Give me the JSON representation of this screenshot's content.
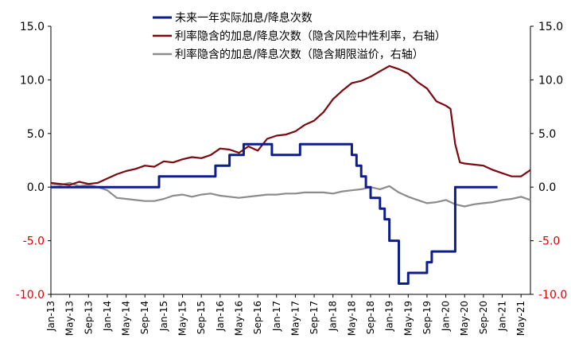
{
  "chart_data": {
    "type": "line",
    "y_left": {
      "min": -10,
      "max": 15,
      "ticks": [
        "15.0",
        "10.0",
        "5.0",
        "0.0",
        "-5.0",
        "-10.0"
      ],
      "tick_values": [
        15,
        10,
        5,
        0,
        -5,
        -10
      ]
    },
    "y_right": {
      "min": -10,
      "max": 15,
      "ticks": [
        "15.0",
        "10.0",
        "5.0",
        "0.0",
        "-5.0",
        "-10.0"
      ],
      "tick_values": [
        15,
        10,
        5,
        0,
        -5,
        -10
      ]
    },
    "x_range": [
      "2013-01",
      "2021-07"
    ],
    "x_ticks": [
      "Jan-13",
      "May-13",
      "Sep-13",
      "Jan-14",
      "May-14",
      "Sep-14",
      "Jan-15",
      "May-15",
      "Sep-15",
      "Jan-16",
      "May-16",
      "Sep-16",
      "Jan-17",
      "May-17",
      "Sep-17",
      "Jan-18",
      "May-18",
      "Sep-18",
      "Jan-19",
      "May-19",
      "Sep-19",
      "Jan-20",
      "May-20",
      "Sep-20",
      "Jan-21",
      "May-21"
    ],
    "x_tick_dates": [
      "2013-01",
      "2013-05",
      "2013-09",
      "2014-01",
      "2014-05",
      "2014-09",
      "2015-01",
      "2015-05",
      "2015-09",
      "2016-01",
      "2016-05",
      "2016-09",
      "2017-01",
      "2017-05",
      "2017-09",
      "2018-01",
      "2018-05",
      "2018-09",
      "2019-01",
      "2019-05",
      "2019-09",
      "2020-01",
      "2020-05",
      "2020-09",
      "2021-01",
      "2021-05"
    ],
    "tick_colors": {
      "positive": "#000000",
      "negative": "#e00000"
    },
    "grid": false,
    "legend_position": "top-center",
    "series": [
      {
        "name": "未来一年实际加息/降息次数",
        "color": "#0d1e8c",
        "style": "step",
        "x": [
          "2013-01",
          "2014-12",
          "2014-12",
          "2015-12",
          "2015-12",
          "2016-03",
          "2016-03",
          "2016-06",
          "2016-06",
          "2016-12",
          "2016-12",
          "2017-06",
          "2017-06",
          "2017-09",
          "2017-09",
          "2018-05",
          "2018-05",
          "2018-06",
          "2018-06",
          "2018-07",
          "2018-07",
          "2018-08",
          "2018-08",
          "2018-09",
          "2018-09",
          "2018-11",
          "2018-11",
          "2018-12",
          "2018-12",
          "2019-01",
          "2019-01",
          "2019-03",
          "2019-03",
          "2019-05",
          "2019-05",
          "2019-09",
          "2019-09",
          "2019-10",
          "2019-10",
          "2019-12",
          "2019-12",
          "2020-03",
          "2020-03",
          "2020-03",
          "2020-03",
          "2020-12"
        ],
        "y": [
          0,
          0,
          1,
          1,
          2,
          2,
          3,
          3,
          4,
          4,
          3,
          3,
          4,
          4,
          4,
          4,
          3,
          3,
          2,
          2,
          1,
          1,
          0,
          0,
          -1,
          -1,
          -2,
          -2,
          -3,
          -3,
          -5,
          -5,
          -9,
          -9,
          -8,
          -8,
          -7,
          -7,
          -6,
          -6,
          -6,
          -6,
          -4,
          -4,
          0,
          0
        ]
      },
      {
        "name": "利率隐含的加息/降息次数（隐含风险中性利率，右轴）",
        "color": "#7a0a10",
        "style": "line",
        "x": [
          "2013-01",
          "2013-03",
          "2013-05",
          "2013-07",
          "2013-09",
          "2013-11",
          "2014-01",
          "2014-03",
          "2014-05",
          "2014-07",
          "2014-09",
          "2014-11",
          "2015-01",
          "2015-03",
          "2015-05",
          "2015-07",
          "2015-09",
          "2015-11",
          "2016-01",
          "2016-03",
          "2016-05",
          "2016-07",
          "2016-09",
          "2016-11",
          "2017-01",
          "2017-03",
          "2017-05",
          "2017-07",
          "2017-09",
          "2017-11",
          "2018-01",
          "2018-03",
          "2018-05",
          "2018-07",
          "2018-09",
          "2018-11",
          "2019-01",
          "2019-03",
          "2019-05",
          "2019-07",
          "2019-09",
          "2019-11",
          "2020-01",
          "2020-02",
          "2020-03",
          "2020-04",
          "2020-05",
          "2020-07",
          "2020-09",
          "2020-11",
          "2021-01",
          "2021-03",
          "2021-05",
          "2021-07"
        ],
        "y": [
          0.4,
          0.3,
          0.2,
          0.5,
          0.3,
          0.4,
          0.8,
          1.2,
          1.5,
          1.7,
          2.0,
          1.9,
          2.4,
          2.3,
          2.6,
          2.8,
          2.7,
          3.0,
          3.6,
          3.5,
          3.2,
          3.8,
          3.4,
          4.5,
          4.8,
          4.9,
          5.2,
          5.8,
          6.2,
          7.0,
          8.2,
          9.0,
          9.7,
          9.9,
          10.3,
          10.8,
          11.3,
          11.0,
          10.6,
          9.8,
          9.2,
          8.0,
          7.6,
          7.3,
          4.0,
          2.3,
          2.2,
          2.1,
          2.0,
          1.6,
          1.3,
          1.0,
          1.0,
          1.6
        ]
      },
      {
        "name": "利率隐含的加息/降息次数（隐含期限溢价，右轴）",
        "color": "#8c8c8c",
        "style": "line",
        "x": [
          "2013-01",
          "2013-03",
          "2013-05",
          "2013-07",
          "2013-09",
          "2013-11",
          "2014-01",
          "2014-03",
          "2014-05",
          "2014-07",
          "2014-09",
          "2014-11",
          "2015-01",
          "2015-03",
          "2015-05",
          "2015-07",
          "2015-09",
          "2015-11",
          "2016-01",
          "2016-03",
          "2016-05",
          "2016-07",
          "2016-09",
          "2016-11",
          "2017-01",
          "2017-03",
          "2017-05",
          "2017-07",
          "2017-09",
          "2017-11",
          "2018-01",
          "2018-03",
          "2018-05",
          "2018-07",
          "2018-09",
          "2018-11",
          "2019-01",
          "2019-03",
          "2019-05",
          "2019-07",
          "2019-09",
          "2019-11",
          "2020-01",
          "2020-03",
          "2020-05",
          "2020-07",
          "2020-09",
          "2020-11",
          "2021-01",
          "2021-03",
          "2021-05",
          "2021-07"
        ],
        "y": [
          0.3,
          0.2,
          0.4,
          0.1,
          0.2,
          0.0,
          -0.3,
          -1.0,
          -1.1,
          -1.2,
          -1.3,
          -1.3,
          -1.1,
          -0.8,
          -0.7,
          -0.9,
          -0.7,
          -0.6,
          -0.8,
          -0.9,
          -1.0,
          -0.9,
          -0.8,
          -0.7,
          -0.7,
          -0.6,
          -0.6,
          -0.5,
          -0.5,
          -0.5,
          -0.6,
          -0.4,
          -0.3,
          -0.2,
          0.0,
          -0.2,
          0.1,
          -0.5,
          -0.9,
          -1.2,
          -1.5,
          -1.4,
          -1.2,
          -1.6,
          -1.8,
          -1.6,
          -1.5,
          -1.4,
          -1.2,
          -1.1,
          -0.9,
          -1.2
        ]
      }
    ]
  }
}
